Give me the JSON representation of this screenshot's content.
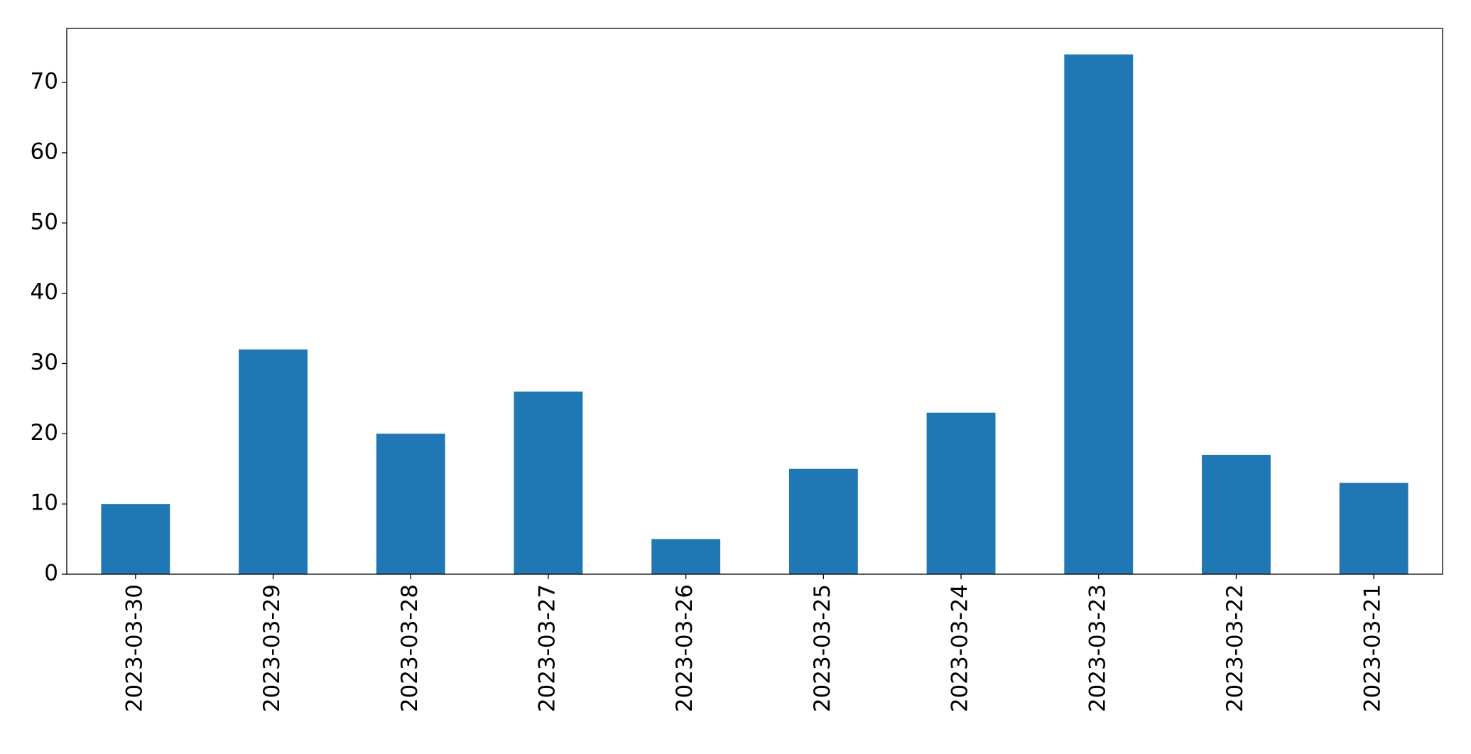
{
  "chart_data": {
    "type": "bar",
    "categories": [
      "2023-03-30",
      "2023-03-29",
      "2023-03-28",
      "2023-03-27",
      "2023-03-26",
      "2023-03-25",
      "2023-03-24",
      "2023-03-23",
      "2023-03-22",
      "2023-03-21"
    ],
    "values": [
      10,
      32,
      20,
      26,
      5,
      15,
      23,
      74,
      17,
      13
    ],
    "color": "#1f77b4",
    "ylim": [
      0,
      77.7
    ],
    "yticks": [
      0,
      10,
      20,
      30,
      40,
      50,
      60,
      70
    ],
    "grid": false
  }
}
